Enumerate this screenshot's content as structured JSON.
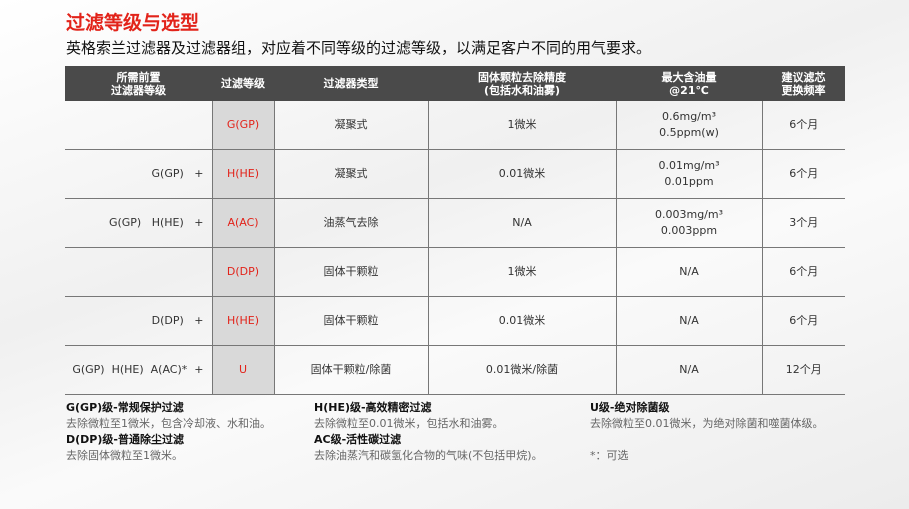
{
  "title": "过滤等级与选型",
  "subtitle": "英格索兰过滤器及过滤器组，对应着不同等级的过滤等级，以满足客户不同的用气要求。",
  "headers": [
    "所需前置\n过滤器等级",
    "过滤等级",
    "过滤器类型",
    "固体颗粒去除精度\n(包括水和油雾)",
    "最大含油量\n@21℃",
    "建议滤芯\n更换频率"
  ],
  "rows": [
    {
      "pre": "",
      "grade": "G(GP)",
      "type": "凝聚式",
      "precision": "1微米",
      "oil": [
        "0.6mg/m³",
        "0.5ppm(w)"
      ],
      "freq": "6个月"
    },
    {
      "pre": "G(GP)   +",
      "grade": "H(HE)",
      "type": "凝聚式",
      "precision": "0.01微米",
      "oil": [
        "0.01mg/m³",
        "0.01ppm"
      ],
      "freq": "6个月"
    },
    {
      "pre": "G(GP)   H(HE)   +",
      "grade": "A(AC)",
      "type": "油蒸气去除",
      "precision": "N/A",
      "oil": [
        "0.003mg/m³",
        "0.003ppm"
      ],
      "freq": "3个月"
    },
    {
      "pre": "",
      "grade": "D(DP)",
      "type": "固体干颗粒",
      "precision": "1微米",
      "oil": [
        "N/A",
        ""
      ],
      "freq": "6个月"
    },
    {
      "pre": "D(DP)   +",
      "grade": "H(HE)",
      "type": "固体干颗粒",
      "precision": "0.01微米",
      "oil": [
        "N/A",
        ""
      ],
      "freq": "6个月"
    },
    {
      "pre": "G(GP)  H(HE)  A(AC)*  +",
      "grade": "U",
      "type": "固体干颗粒/除菌",
      "precision": "0.01微米/除菌",
      "oil": [
        "N/A",
        ""
      ],
      "freq": "12个月"
    }
  ],
  "notes": {
    "gp_title": "G(GP)级-常规保护过滤",
    "gp_desc": "去除微粒至1微米，包含冷却液、水和油。",
    "dp_title": "D(DP)级-普通除尘过滤",
    "dp_desc": "去除固体微粒至1微米。",
    "he_title": "H(HE)级-高效精密过滤",
    "he_desc": "去除微粒至0.01微米，包括水和油雾。",
    "ac_title": "AC级-活性碳过滤",
    "ac_desc": "去除油蒸汽和碳氢化合物的气味(不包括甲烷)。",
    "u_title": "U级-绝对除菌级",
    "u_desc": "去除微粒至0.01微米，为绝对除菌和噬菌体级。",
    "optional": "*：可选"
  },
  "colors": {
    "accent": "#e2231a",
    "header_bg": "#4a4a4a",
    "grade_bg": "#d9d9d9"
  }
}
